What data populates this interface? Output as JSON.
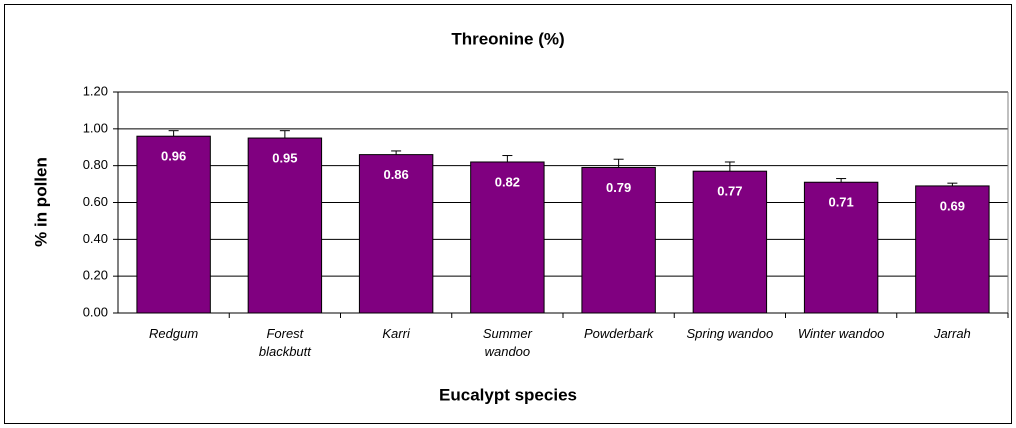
{
  "chart_data": {
    "type": "bar",
    "title": "Threonine (%)",
    "x_label": "Eucalypt species",
    "y_label": "% in pollen",
    "categories": [
      "Redgum",
      "Forest blackbutt",
      "Karri",
      "Summer wandoo",
      "Powderbark",
      "Spring wandoo",
      "Winter wandoo",
      "Jarrah"
    ],
    "values": [
      0.96,
      0.95,
      0.86,
      0.82,
      0.79,
      0.77,
      0.71,
      0.69
    ],
    "errors": [
      0.03,
      0.04,
      0.02,
      0.035,
      0.045,
      0.05,
      0.02,
      0.015
    ],
    "color": "#800080",
    "ylim": [
      0,
      1.2
    ],
    "yticks": [
      {
        "value": 0,
        "label": "0.00"
      },
      {
        "value": 0.2,
        "label": "0.20"
      },
      {
        "value": 0.4,
        "label": "0.40"
      },
      {
        "value": 0.6,
        "label": "0.60"
      },
      {
        "value": 0.8,
        "label": "0.80"
      },
      {
        "value": 1.0,
        "label": "1.00"
      },
      {
        "value": 1.2,
        "label": "1.20"
      }
    ],
    "grid": true
  }
}
